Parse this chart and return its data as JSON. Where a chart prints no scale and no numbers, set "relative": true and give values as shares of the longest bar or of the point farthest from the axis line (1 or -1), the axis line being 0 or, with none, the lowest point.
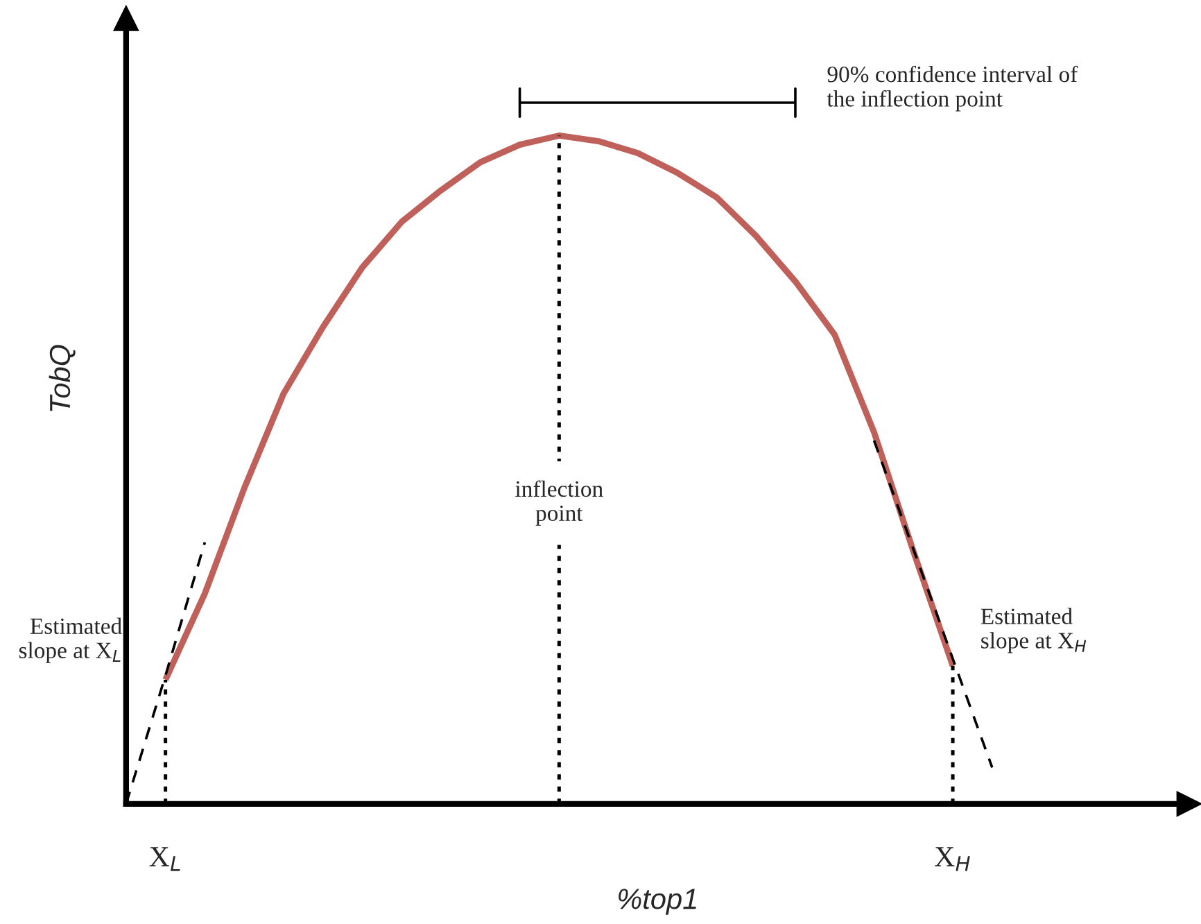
{
  "chart_data": {
    "type": "line",
    "relative": true,
    "xlabel": "%top1",
    "ylabel": "TobQ",
    "categories": [
      null,
      "X$_{L}$",
      null,
      null,
      null,
      null,
      null,
      null,
      null,
      null,
      null,
      null,
      null,
      null,
      null,
      null,
      null,
      null,
      null,
      null,
      null,
      "X$_{H}$",
      null,
      null,
      null,
      null,
      null,
      null
    ],
    "series": [
      {
        "color": "#c0605a",
        "values": [
          null,
          0.177,
          0.3,
          0.45,
          0.585,
          0.68,
          0.765,
          0.83,
          0.875,
          0.915,
          0.94,
          0.953,
          0.945,
          0.928,
          0.9,
          0.865,
          0.81,
          0.745,
          0.669,
          0.53,
          0.36,
          0.197,
          null,
          null,
          null,
          null,
          null,
          null
        ]
      },
      {
        "name": "Estimated slope at X$_{L}$",
        "color": "#000000",
        "line_style": "dashed",
        "values": [
          0,
          0.183,
          0.373,
          null,
          null,
          null,
          null,
          null,
          null,
          null,
          null,
          null,
          null,
          null,
          null,
          null,
          null,
          null,
          null,
          null,
          null,
          null,
          null,
          null,
          null,
          null,
          null,
          null
        ]
      },
      {
        "name": "Estimated slope at X$_{H}$",
        "color": "#000000",
        "line_style": "dashed",
        "values": [
          null,
          null,
          null,
          null,
          null,
          null,
          null,
          null,
          null,
          null,
          null,
          null,
          null,
          null,
          null,
          null,
          null,
          null,
          null,
          0.518,
          0.363,
          0.207,
          0.052,
          null,
          null,
          null,
          null,
          null
        ]
      },
      {
        "name": "90% confidence interval of\nthe inflection point",
        "color": "#000000",
        "values": [
          null,
          null,
          null,
          null,
          null,
          null,
          null,
          null,
          null,
          null,
          1,
          1,
          1,
          1,
          1,
          1,
          1,
          1,
          null,
          null,
          null,
          null,
          null,
          null,
          null,
          null,
          null,
          null
        ]
      }
    ],
    "ref_lines": [
      {
        "axis": "x",
        "value": "X$_{L}$",
        "line_style": "dotted"
      },
      {
        "axis": "x",
        "value": "X$_{H}$",
        "line_style": "dotted"
      }
    ],
    "annotations": [
      "inflection point"
    ]
  }
}
